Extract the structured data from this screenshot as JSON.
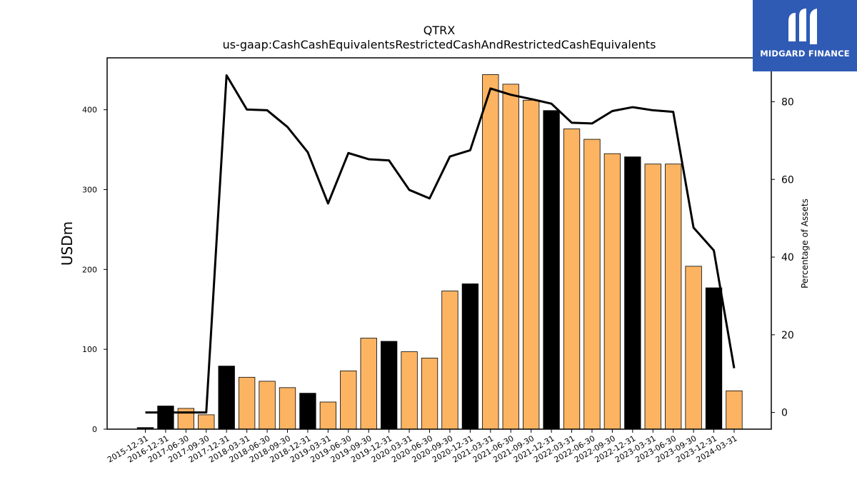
{
  "chart_data": {
    "type": "bar+line",
    "title": "QTRX",
    "subtitle": "us-gaap:CashCashEquivalentsRestrictedCashAndRestrictedCashEquivalents",
    "ylabel": "USDm",
    "y2label": "Percentage of Assets",
    "ylim": [
      0,
      465
    ],
    "y2lim": [
      -4.3,
      91.3
    ],
    "yticks": [
      0,
      100,
      200,
      300,
      400
    ],
    "y2ticks": [
      0,
      20,
      40,
      60,
      80
    ],
    "categories": [
      "2015-12-31",
      "2016-12-31",
      "2017-06-30",
      "2017-09-30",
      "2017-12-31",
      "2018-03-31",
      "2018-06-30",
      "2018-09-30",
      "2018-12-31",
      "2019-03-31",
      "2019-06-30",
      "2019-09-30",
      "2019-12-31",
      "2020-03-31",
      "2020-06-30",
      "2020-09-30",
      "2020-12-31",
      "2021-03-31",
      "2021-06-30",
      "2021-09-30",
      "2021-12-31",
      "2022-03-31",
      "2022-06-30",
      "2022-09-30",
      "2022-12-31",
      "2023-03-31",
      "2023-06-30",
      "2023-09-30",
      "2023-12-31",
      "2024-03-31"
    ],
    "series": [
      {
        "type": "bar",
        "values": [
          2,
          29,
          26,
          18,
          79,
          65,
          60,
          52,
          45,
          34,
          73,
          114,
          110,
          97,
          89,
          173,
          182,
          444,
          432,
          412,
          399,
          376,
          363,
          345,
          341,
          332,
          332,
          204,
          177,
          48
        ],
        "colors": [
          "#000000",
          "#000000",
          "#fdb462",
          "#fdb462",
          "#000000",
          "#fdb462",
          "#fdb462",
          "#fdb462",
          "#000000",
          "#fdb462",
          "#fdb462",
          "#fdb462",
          "#000000",
          "#fdb462",
          "#fdb462",
          "#fdb462",
          "#000000",
          "#fdb462",
          "#fdb462",
          "#fdb462",
          "#000000",
          "#fdb462",
          "#fdb462",
          "#fdb462",
          "#000000",
          "#fdb462",
          "#fdb462",
          "#fdb462",
          "#000000",
          "#fdb462"
        ]
      },
      {
        "type": "line",
        "axis": "right",
        "color": "#000000",
        "values": [
          0,
          0,
          0,
          0,
          86.8,
          78,
          77.8,
          73.5,
          67,
          53.8,
          66.8,
          65.2,
          64.9,
          57.3,
          55.1,
          65.9,
          67.5,
          83.4,
          81.8,
          80.7,
          79.5,
          74.6,
          74.4,
          77.6,
          78.6,
          77.8,
          77.4,
          47.6,
          41.7,
          11.4
        ]
      }
    ],
    "grid": false,
    "legend": "none"
  },
  "logo": {
    "text": "MIDGARD FINANCE",
    "color": "#2f5bb5"
  }
}
